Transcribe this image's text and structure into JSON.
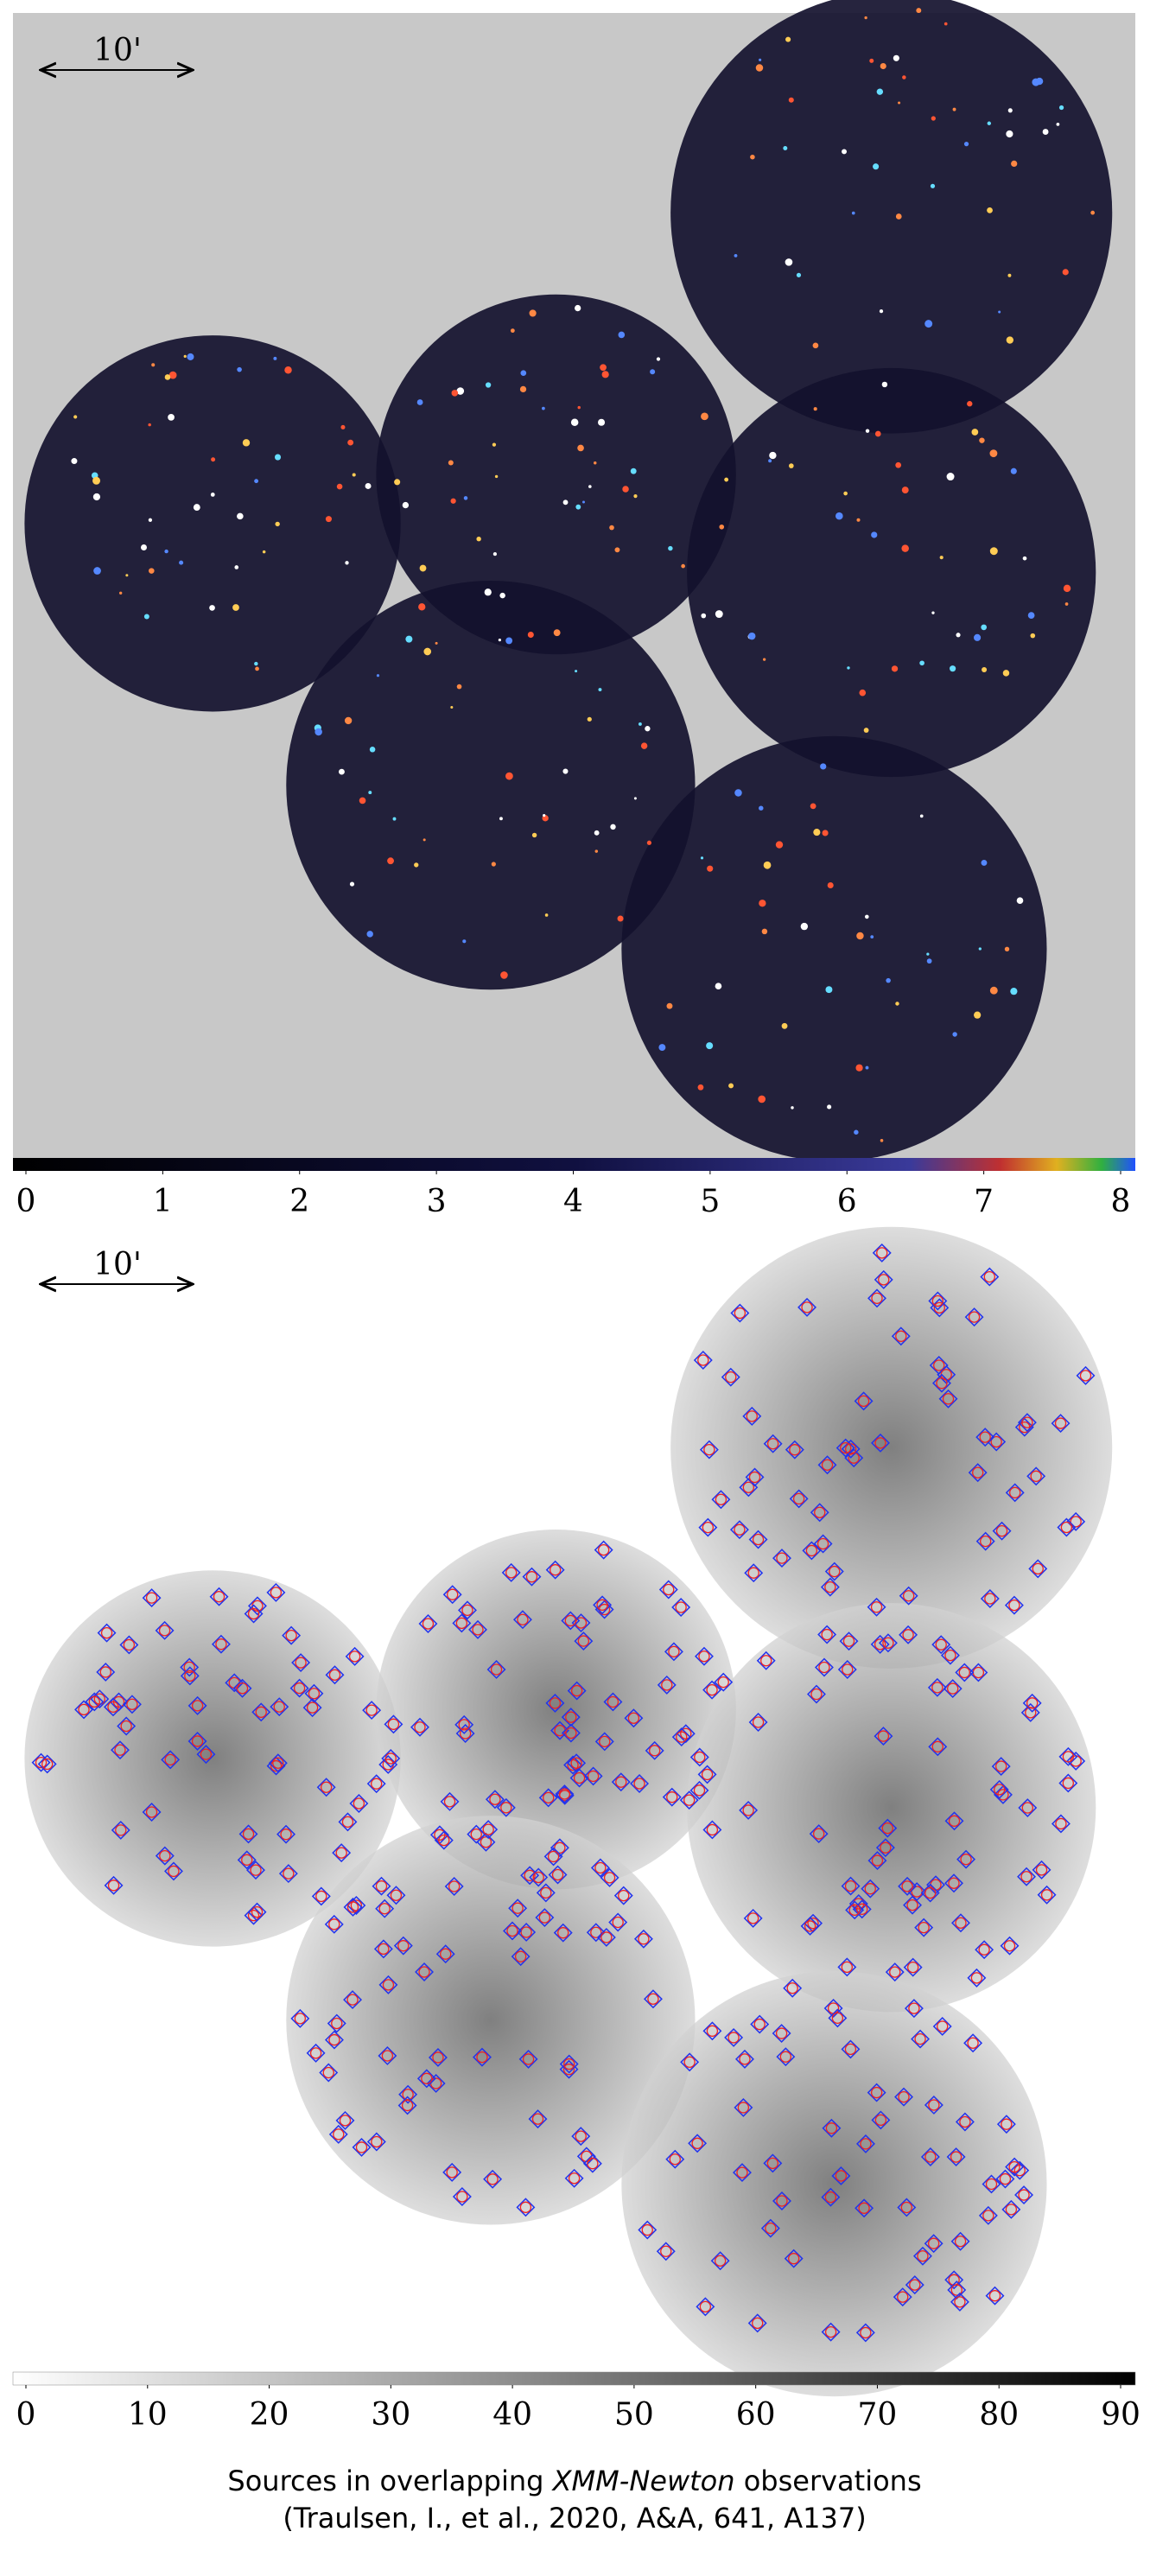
{
  "panels": [
    {
      "scale_bar": "10'",
      "colorbar": {
        "clim": [
          0,
          8
        ],
        "ticks": [
          0,
          1,
          2,
          3,
          4,
          5,
          6,
          7,
          8
        ]
      }
    },
    {
      "scale_bar": "10'",
      "colorbar": {
        "clim": [
          0,
          90
        ],
        "ticks": [
          0,
          10,
          20,
          30,
          40,
          50,
          60,
          70,
          80,
          90
        ]
      }
    }
  ],
  "caption": {
    "line1": [
      "Sources in overlapping ",
      "XMM-Newton",
      " observations"
    ],
    "line2": "(Traulsen, I., et al., 2020, A&A, 641, A137)"
  }
}
